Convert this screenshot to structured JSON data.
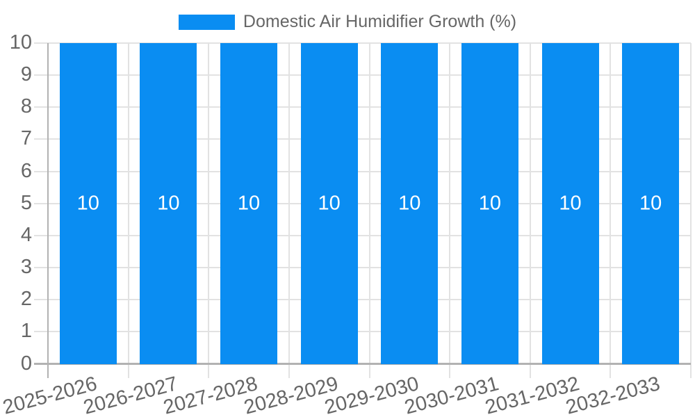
{
  "legend": {
    "label": "Domestic Air Humidifier Growth (%)"
  },
  "chart_data": {
    "type": "bar",
    "title": "",
    "xlabel": "",
    "ylabel": "",
    "categories": [
      "2025-2026",
      "2026-2027",
      "2027-2028",
      "2028-2029",
      "2029-2030",
      "2030-2031",
      "2031-2032",
      "2032-2033"
    ],
    "series": [
      {
        "name": "Domestic Air Humidifier Growth (%)",
        "values": [
          10,
          10,
          10,
          10,
          10,
          10,
          10,
          10
        ],
        "color": "#0a8df2"
      }
    ],
    "value_labels": [
      "10",
      "10",
      "10",
      "10",
      "10",
      "10",
      "10",
      "10"
    ],
    "ylim": [
      0,
      10
    ],
    "yticks": [
      0,
      1,
      2,
      3,
      4,
      5,
      6,
      7,
      8,
      9,
      10
    ],
    "grid": true,
    "legend_position": "top",
    "style": {
      "bar_color": "#0a8df2",
      "grid_color": "#e2e2e2",
      "axis_color": "#b2b2b2",
      "tick_text_color": "#666666",
      "legend_text_color": "#666666",
      "value_label_color": "#ffffff",
      "background": "#ffffff"
    }
  }
}
